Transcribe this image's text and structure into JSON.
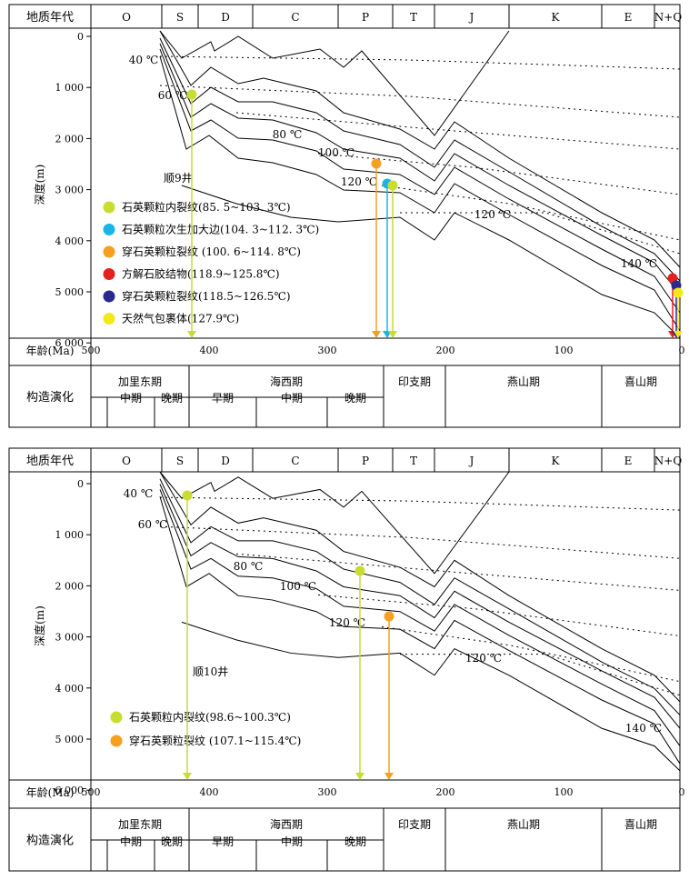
{
  "panels": [
    {
      "era_header": "地质年代",
      "periods": [
        "O",
        "S",
        "D",
        "C",
        "P",
        "T",
        "J",
        "K",
        "E",
        "N+Q"
      ],
      "depth_axis_label": "深度(m)",
      "depth_ticks": [
        "0",
        "1 000",
        "2 000",
        "3 000",
        "4 000",
        "5 000",
        "6 000"
      ],
      "age_axis_label": "年龄(Ma)",
      "age_ticks": [
        "500",
        "400",
        "300",
        "200",
        "100",
        "0"
      ],
      "tectonic_label": "构造演化",
      "tectonic_phases": [
        "加里东期",
        "海西期",
        "印支期",
        "燕山期",
        "喜山期"
      ],
      "sub_phases": [
        "中期",
        "晚期",
        "早期",
        "中期",
        "晚期"
      ],
      "isotherms": [
        "40 ℃",
        "60 ℃",
        "80 ℃",
        "100 ℃",
        "120 ℃",
        "120 ℃",
        "140 ℃"
      ],
      "well_name": "顺9井",
      "legend": [
        {
          "label": "石英颗粒内裂纹(85. 5~103. 3℃)",
          "color": "#c8dc32"
        },
        {
          "label": "石英颗粒次生加大边(104. 3~112. 3℃)",
          "color": "#1ab4e8"
        },
        {
          "label": "穿石英颗粒裂纹 (100. 6~114. 8℃)",
          "color": "#f5a020"
        },
        {
          "label": "方解石胶结物(118.9~125.8℃)",
          "color": "#e52020"
        },
        {
          "label": "穿石英颗粒裂纹(118.5~126.5℃)",
          "color": "#2a2a8c"
        },
        {
          "label": "天然气包裹体(127.9℃)",
          "color": "#f5e818"
        }
      ]
    },
    {
      "era_header": "地质年代",
      "periods": [
        "O",
        "S",
        "D",
        "C",
        "P",
        "T",
        "J",
        "K",
        "E",
        "N+Q"
      ],
      "depth_axis_label": "深度(m)",
      "depth_ticks": [
        "0",
        "1 000",
        "2 000",
        "3 000",
        "4 000",
        "5 000",
        "6 000"
      ],
      "age_axis_label": "年龄(Ma)",
      "age_ticks": [
        "500",
        "400",
        "300",
        "200",
        "100",
        "0"
      ],
      "tectonic_label": "构造演化",
      "tectonic_phases": [
        "加里东期",
        "海西期",
        "印支期",
        "燕山期",
        "喜山期"
      ],
      "sub_phases": [
        "中期",
        "晚期",
        "早期",
        "中期",
        "晚期"
      ],
      "isotherms": [
        "40 ℃",
        "60 ℃",
        "80 ℃",
        "100 ℃",
        "120 ℃",
        "120 ℃",
        "140 ℃"
      ],
      "well_name": "顺10井",
      "legend": [
        {
          "label": "石英颗粒内裂纹(98.6~100.3℃)",
          "color": "#c8dc32"
        },
        {
          "label": "穿石英颗粒裂纹 (107.1~115.4℃)",
          "color": "#f5a020"
        }
      ]
    }
  ]
}
